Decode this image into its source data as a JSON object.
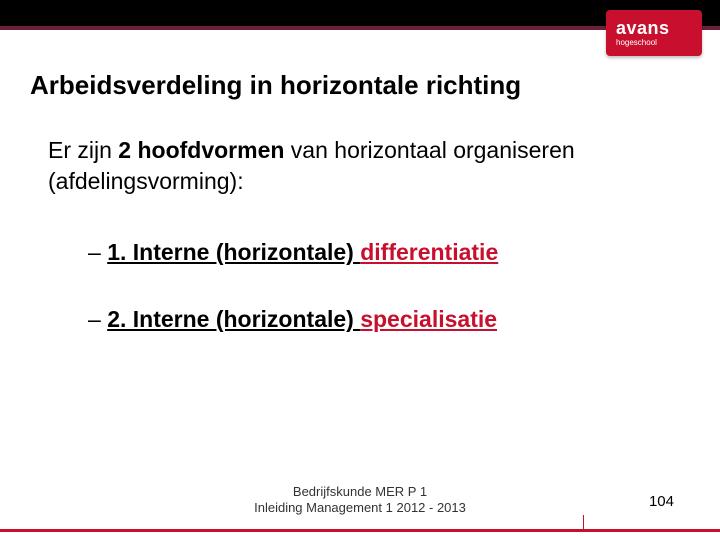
{
  "brand": {
    "name": "avans",
    "sub": "hogeschool",
    "brand_color": "#c8102e",
    "top_bar_color": "#000000",
    "border_color": "#6b1f3a"
  },
  "title": "Arbeidsverdeling in horizontale richting",
  "intro": {
    "pre": "Er zijn ",
    "bold": "2 hoofdvormen",
    "post": " van horizontaal organiseren (afdelingsvorming):"
  },
  "items": [
    {
      "dash": "– ",
      "prefix": "1. Interne (horizontale) ",
      "highlight": "differentiatie"
    },
    {
      "dash": "–  ",
      "prefix": "2. Interne (horizontale) ",
      "highlight": "specialisatie"
    }
  ],
  "footer": {
    "line1": "Bedrijfskunde MER P 1",
    "line2": "Inleiding Management 1  2012 - 2013"
  },
  "page_number": "104"
}
